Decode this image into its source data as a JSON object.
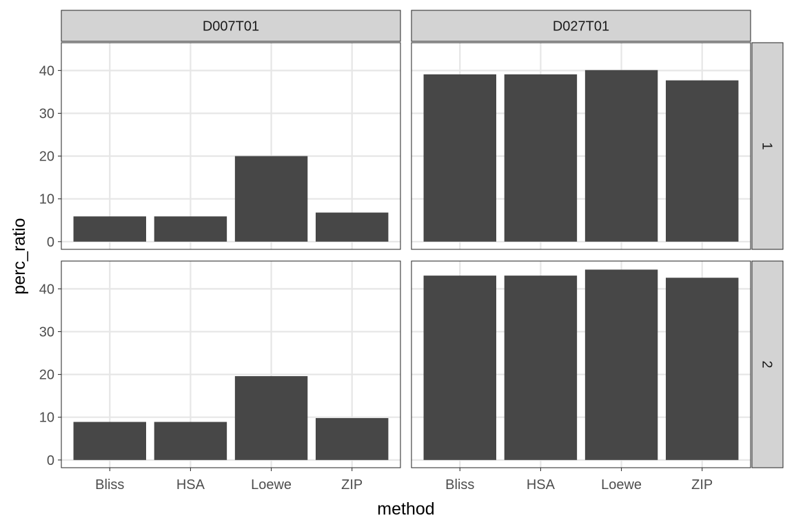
{
  "chart_data": {
    "type": "bar",
    "layout": "facet_grid",
    "xlabel": "method",
    "ylabel": "perc_ratio",
    "ylim": [
      -1.8,
      46.5
    ],
    "yticks": [
      0,
      10,
      20,
      30,
      40
    ],
    "grid": true,
    "categories": [
      "Bliss",
      "HSA",
      "Loewe",
      "ZIP"
    ],
    "col_facets": [
      "D007T01",
      "D027T01"
    ],
    "row_facets": [
      "1",
      "2"
    ],
    "panels": [
      {
        "col": "D007T01",
        "row": "1",
        "values": [
          5.9,
          5.9,
          20.0,
          6.8
        ]
      },
      {
        "col": "D027T01",
        "row": "1",
        "values": [
          39.1,
          39.1,
          40.1,
          37.7
        ]
      },
      {
        "col": "D007T01",
        "row": "2",
        "values": [
          8.9,
          8.9,
          19.6,
          9.8
        ]
      },
      {
        "col": "D027T01",
        "row": "2",
        "values": [
          43.1,
          43.1,
          44.5,
          42.6
        ]
      }
    ],
    "colors": {
      "bar": "#474747",
      "strip": "#d3d3d3",
      "grid": "#e6e6e6"
    }
  }
}
